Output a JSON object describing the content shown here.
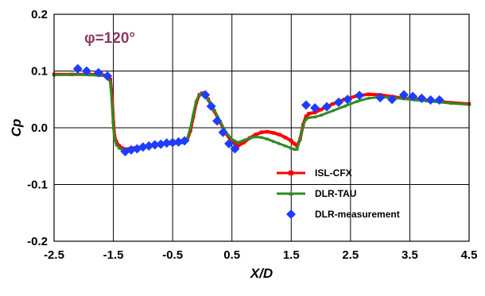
{
  "chart_data": {
    "type": "line",
    "title": "",
    "annotation": {
      "text": "φ=120°",
      "color": "#8B3A62"
    },
    "xlabel": "X/D",
    "ylabel": "Cp",
    "xlim": [
      -2.5,
      4.5
    ],
    "ylim": [
      -0.2,
      0.2
    ],
    "x_ticks": [
      -2.5,
      -1.5,
      -0.5,
      0.5,
      1.5,
      2.5,
      3.5,
      4.5
    ],
    "x_tick_labels": [
      "-2.5",
      "-1.5",
      "-0.5",
      "0.5",
      "1.5",
      "2.5",
      "3.5",
      "4.5"
    ],
    "y_ticks": [
      -0.2,
      -0.1,
      0.0,
      0.1,
      0.2
    ],
    "y_tick_labels": [
      "-0.2",
      "-0.1",
      "0.0",
      "0.1",
      "0.2"
    ],
    "grid": true,
    "legend_position": "lower-right",
    "series": [
      {
        "name": "ISL-CFX",
        "color": "#ff0000",
        "marker": "square",
        "points": [
          [
            -2.5,
            0.094
          ],
          [
            -2.2,
            0.094
          ],
          [
            -1.9,
            0.094
          ],
          [
            -1.7,
            0.093
          ],
          [
            -1.6,
            0.092
          ],
          [
            -1.55,
            0.085
          ],
          [
            -1.52,
            0.05
          ],
          [
            -1.5,
            0.01
          ],
          [
            -1.48,
            -0.015
          ],
          [
            -1.45,
            -0.025
          ],
          [
            -1.4,
            -0.032
          ],
          [
            -1.35,
            -0.036
          ],
          [
            -1.3,
            -0.038
          ],
          [
            -1.2,
            -0.036
          ],
          [
            -1.0,
            -0.034
          ],
          [
            -0.8,
            -0.031
          ],
          [
            -0.6,
            -0.028
          ],
          [
            -0.4,
            -0.027
          ],
          [
            -0.3,
            -0.025
          ],
          [
            -0.25,
            -0.02
          ],
          [
            -0.2,
            -0.005
          ],
          [
            -0.15,
            0.02
          ],
          [
            -0.1,
            0.045
          ],
          [
            -0.05,
            0.058
          ],
          [
            0.0,
            0.061
          ],
          [
            0.05,
            0.058
          ],
          [
            0.1,
            0.05
          ],
          [
            0.2,
            0.03
          ],
          [
            0.3,
            0.01
          ],
          [
            0.4,
            -0.01
          ],
          [
            0.5,
            -0.025
          ],
          [
            0.6,
            -0.032
          ],
          [
            0.7,
            -0.026
          ],
          [
            0.8,
            -0.018
          ],
          [
            0.9,
            -0.012
          ],
          [
            1.0,
            -0.008
          ],
          [
            1.1,
            -0.007
          ],
          [
            1.2,
            -0.009
          ],
          [
            1.3,
            -0.012
          ],
          [
            1.4,
            -0.017
          ],
          [
            1.5,
            -0.023
          ],
          [
            1.55,
            -0.028
          ],
          [
            1.6,
            -0.032
          ],
          [
            1.65,
            -0.02
          ],
          [
            1.7,
            0.005
          ],
          [
            1.75,
            0.02
          ],
          [
            1.8,
            0.025
          ],
          [
            1.9,
            0.027
          ],
          [
            2.0,
            0.032
          ],
          [
            2.2,
            0.042
          ],
          [
            2.4,
            0.05
          ],
          [
            2.6,
            0.056
          ],
          [
            2.8,
            0.059
          ],
          [
            3.0,
            0.058
          ],
          [
            3.2,
            0.055
          ],
          [
            3.4,
            0.052
          ],
          [
            3.6,
            0.05
          ],
          [
            3.8,
            0.048
          ],
          [
            4.0,
            0.046
          ],
          [
            4.2,
            0.044
          ],
          [
            4.5,
            0.042
          ]
        ]
      },
      {
        "name": "DLR-TAU",
        "color": "#2e8b22",
        "marker": "triangle",
        "points": [
          [
            -2.5,
            0.093
          ],
          [
            -2.2,
            0.094
          ],
          [
            -1.9,
            0.093
          ],
          [
            -1.7,
            0.092
          ],
          [
            -1.6,
            0.09
          ],
          [
            -1.55,
            0.08
          ],
          [
            -1.52,
            0.04
          ],
          [
            -1.5,
            0.0
          ],
          [
            -1.48,
            -0.02
          ],
          [
            -1.45,
            -0.03
          ],
          [
            -1.4,
            -0.036
          ],
          [
            -1.35,
            -0.039
          ],
          [
            -1.3,
            -0.04
          ],
          [
            -1.2,
            -0.037
          ],
          [
            -1.0,
            -0.034
          ],
          [
            -0.8,
            -0.031
          ],
          [
            -0.6,
            -0.029
          ],
          [
            -0.4,
            -0.028
          ],
          [
            -0.3,
            -0.026
          ],
          [
            -0.25,
            -0.018
          ],
          [
            -0.2,
            0.0
          ],
          [
            -0.15,
            0.025
          ],
          [
            -0.1,
            0.048
          ],
          [
            -0.05,
            0.058
          ],
          [
            0.0,
            0.06
          ],
          [
            0.05,
            0.057
          ],
          [
            0.1,
            0.05
          ],
          [
            0.2,
            0.032
          ],
          [
            0.3,
            0.012
          ],
          [
            0.4,
            -0.008
          ],
          [
            0.5,
            -0.02
          ],
          [
            0.6,
            -0.026
          ],
          [
            0.7,
            -0.022
          ],
          [
            0.8,
            -0.018
          ],
          [
            0.9,
            -0.016
          ],
          [
            1.0,
            -0.017
          ],
          [
            1.1,
            -0.02
          ],
          [
            1.2,
            -0.024
          ],
          [
            1.3,
            -0.028
          ],
          [
            1.4,
            -0.032
          ],
          [
            1.5,
            -0.036
          ],
          [
            1.55,
            -0.038
          ],
          [
            1.6,
            -0.038
          ],
          [
            1.65,
            -0.02
          ],
          [
            1.7,
            0.005
          ],
          [
            1.75,
            0.015
          ],
          [
            1.8,
            0.018
          ],
          [
            1.9,
            0.019
          ],
          [
            2.0,
            0.022
          ],
          [
            2.2,
            0.03
          ],
          [
            2.4,
            0.038
          ],
          [
            2.6,
            0.046
          ],
          [
            2.8,
            0.052
          ],
          [
            3.0,
            0.054
          ],
          [
            3.2,
            0.053
          ],
          [
            3.4,
            0.051
          ],
          [
            3.6,
            0.049
          ],
          [
            3.8,
            0.047
          ],
          [
            4.0,
            0.045
          ],
          [
            4.2,
            0.043
          ],
          [
            4.5,
            0.041
          ]
        ]
      },
      {
        "name": "DLR-measurement",
        "color": "#1f3dff",
        "marker": "diamond",
        "points": [
          [
            -2.1,
            0.104
          ],
          [
            -1.95,
            0.1
          ],
          [
            -1.75,
            0.097
          ],
          [
            -1.6,
            0.091
          ],
          [
            -1.3,
            -0.042
          ],
          [
            -1.2,
            -0.039
          ],
          [
            -1.1,
            -0.037
          ],
          [
            -1.0,
            -0.034
          ],
          [
            -0.9,
            -0.032
          ],
          [
            -0.8,
            -0.03
          ],
          [
            -0.7,
            -0.029
          ],
          [
            -0.6,
            -0.027
          ],
          [
            -0.5,
            -0.026
          ],
          [
            -0.4,
            -0.025
          ],
          [
            -0.3,
            -0.023
          ],
          [
            0.05,
            0.058
          ],
          [
            0.15,
            0.038
          ],
          [
            0.25,
            0.012
          ],
          [
            0.35,
            -0.008
          ],
          [
            0.45,
            -0.028
          ],
          [
            0.55,
            -0.037
          ],
          [
            1.75,
            0.04
          ],
          [
            1.9,
            0.035
          ],
          [
            2.1,
            0.037
          ],
          [
            2.3,
            0.045
          ],
          [
            2.45,
            0.05
          ],
          [
            2.65,
            0.057
          ],
          [
            3.0,
            0.053
          ],
          [
            3.2,
            0.05
          ],
          [
            3.4,
            0.058
          ],
          [
            3.55,
            0.055
          ],
          [
            3.7,
            0.052
          ],
          [
            3.85,
            0.049
          ],
          [
            4.0,
            0.049
          ]
        ]
      }
    ]
  }
}
